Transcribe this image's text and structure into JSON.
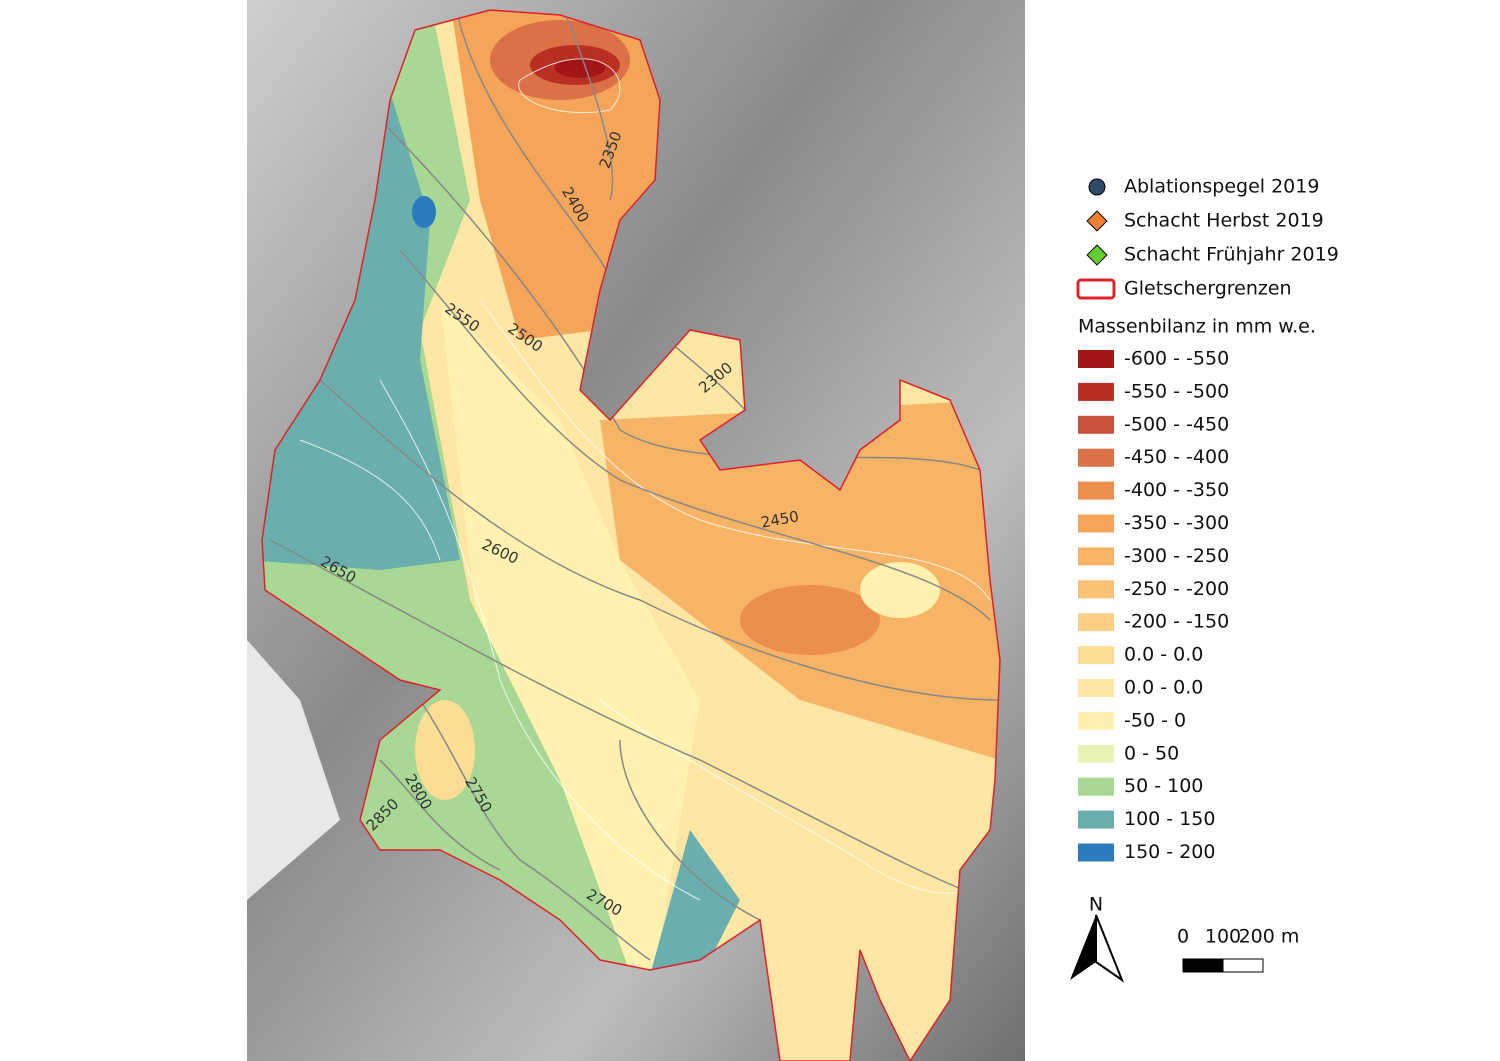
{
  "map": {
    "contour_labels": [
      "2350",
      "2400",
      "2550",
      "2500",
      "2300",
      "2450",
      "2600",
      "2650",
      "2800",
      "2750",
      "2850",
      "2700"
    ]
  },
  "legend": {
    "symbols": [
      {
        "label": "Ablationspegel 2019",
        "color": "#2f4a68"
      },
      {
        "label": "Schacht Herbst 2019",
        "color": "#ee8030"
      },
      {
        "label": "Schacht Frühjahr 2019",
        "color": "#66cc33"
      },
      {
        "label": "Gletschergrenzen",
        "color": "#e0202a"
      }
    ],
    "title": "Massenbilanz in mm w.e.",
    "classes": [
      {
        "label": "-600 - -550",
        "color": "#a31618"
      },
      {
        "label": "-550 - -500",
        "color": "#b92f24"
      },
      {
        "label": "-500 - -450",
        "color": "#c9503a"
      },
      {
        "label": "-450 - -400",
        "color": "#dc7046"
      },
      {
        "label": "-400 - -350",
        "color": "#ec8e4e"
      },
      {
        "label": "-350 - -300",
        "color": "#f5a55a"
      },
      {
        "label": "-300 - -250",
        "color": "#f8b466"
      },
      {
        "label": "-250 - -200",
        "color": "#fac274"
      },
      {
        "label": "-200 - -150",
        "color": "#fccf84"
      },
      {
        "label": "0.0 - 0.0",
        "color": "#fddc94"
      },
      {
        "label": "0.0 - 0.0",
        "color": "#fee6a4"
      },
      {
        "label": "-50 - 0",
        "color": "#fff2b0"
      },
      {
        "label": "0 - 50",
        "color": "#e6f3b4"
      },
      {
        "label": "50 - 100",
        "color": "#a8d894"
      },
      {
        "label": "100 - 150",
        "color": "#6aaeae"
      },
      {
        "label": "150 - 200",
        "color": "#2b7bbd"
      }
    ]
  },
  "north_arrow": "N",
  "scale_bar": {
    "labels": [
      "0",
      "100",
      "200 m"
    ]
  }
}
